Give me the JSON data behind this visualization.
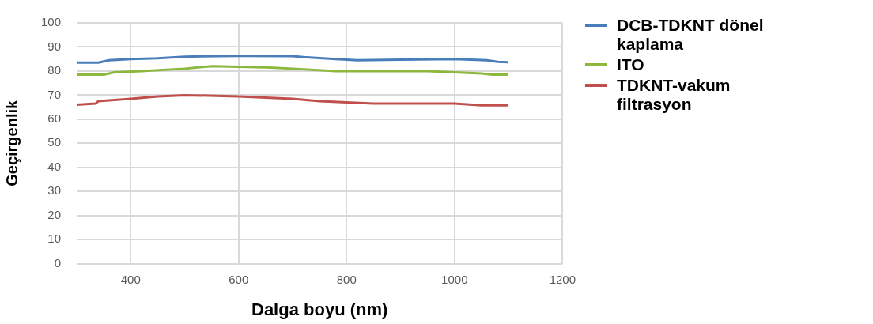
{
  "chart_data": {
    "type": "line",
    "xlabel": "Dalga boyu (nm)",
    "ylabel": "Geçirgenlik",
    "xlim": [
      300,
      1200
    ],
    "xticks": [
      400,
      600,
      800,
      1000,
      1200
    ],
    "ylim": [
      0,
      100
    ],
    "yticks": [
      0,
      10,
      20,
      30,
      40,
      50,
      60,
      70,
      80,
      90,
      100
    ],
    "grid": true,
    "legend": "right",
    "marker": "none",
    "series": [
      {
        "name": "DCB-TDKNT dönel kaplama",
        "color": "#4a7ebb",
        "x": [
          300,
          340,
          360,
          400,
          450,
          500,
          600,
          700,
          720,
          780,
          820,
          900,
          1000,
          1060,
          1080,
          1100
        ],
        "values": [
          83.5,
          83.5,
          84.5,
          85,
          85.3,
          86,
          86.3,
          86.2,
          85.8,
          85,
          84.5,
          84.7,
          85,
          84.5,
          83.8,
          83.7
        ]
      },
      {
        "name": "ITO",
        "color": "#8cb83e",
        "x": [
          300,
          350,
          370,
          420,
          500,
          550,
          650,
          700,
          780,
          950,
          1000,
          1050,
          1070,
          1100
        ],
        "values": [
          78.5,
          78.5,
          79.5,
          80,
          81,
          82,
          81.5,
          81,
          80,
          80,
          79.5,
          79,
          78.5,
          78.5
        ]
      },
      {
        "name": "TDKNT-vakum filtrasyon",
        "color": "#c0504d",
        "x": [
          300,
          335,
          340,
          400,
          450,
          500,
          600,
          650,
          700,
          750,
          800,
          850,
          1000,
          1050,
          1100
        ],
        "values": [
          66,
          66.5,
          67.5,
          68.5,
          69.5,
          70,
          69.5,
          69,
          68.5,
          67.5,
          67,
          66.5,
          66.5,
          65.8,
          65.8
        ]
      }
    ]
  }
}
